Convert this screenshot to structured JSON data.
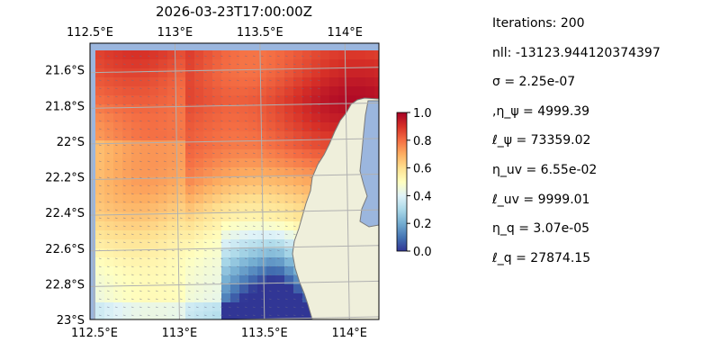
{
  "title": "2026-03-23T17:00:00Z",
  "map": {
    "lon_ticks": [
      "112.5°E",
      "113°E",
      "113.5°E",
      "114°E"
    ],
    "lon_values": [
      112.5,
      113.0,
      113.5,
      114.0
    ],
    "lat_ticks": [
      "21.6°S",
      "21.8°S",
      "22°S",
      "22.2°S",
      "22.4°S",
      "22.6°S",
      "22.8°S",
      "23°S"
    ],
    "lat_values": [
      -21.6,
      -21.8,
      -22.0,
      -22.2,
      -22.4,
      -22.6,
      -22.8,
      -23.0
    ],
    "extent": {
      "lon": [
        112.5,
        114.2
      ],
      "lat": [
        -23.0,
        -21.45
      ]
    },
    "colormap": "RdYlBu_r",
    "grid": true,
    "colors": {
      "ocean": "#9bb6de",
      "land": "#efefdb",
      "coast": "#7a7a7a"
    }
  },
  "colorbar": {
    "ticks": [
      "0.0",
      "0.2",
      "0.4",
      "0.6",
      "0.8",
      "1.0"
    ],
    "range": [
      0,
      1
    ]
  },
  "stats": [
    "Iterations: 200",
    "nll: -13123.944120374397",
    "σ = 2.25e-07",
    ",η_ψ = 4999.39",
    "ℓ_ψ = 73359.02",
    "η_uv = 6.55e-02",
    "ℓ_uv = 9999.01",
    "η_q = 3.07e-05",
    "ℓ_q = 27874.15"
  ]
}
